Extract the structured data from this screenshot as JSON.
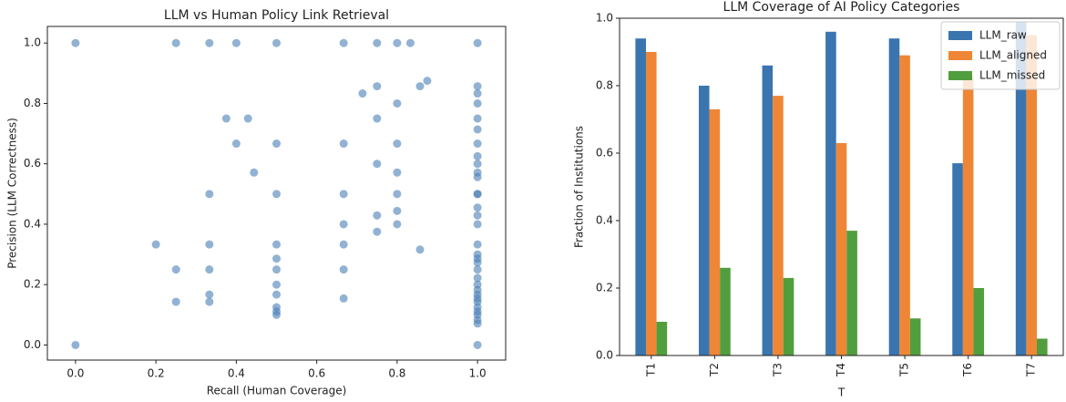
{
  "chart_data": [
    {
      "type": "scatter",
      "title": "LLM vs Human Policy Link Retrieval",
      "x_label": "Recall (Human Coverage)",
      "y_label": "Precision (LLM Correctness)",
      "color": "#4a7fb5",
      "grid": false,
      "xlim": [
        -0.07,
        1.07
      ],
      "ylim": [
        -0.05,
        1.055
      ],
      "xticks": [
        {
          "value": 0,
          "label": "0.0"
        },
        {
          "value": 0.2,
          "label": "0.2"
        },
        {
          "value": 0.4,
          "label": "0.4"
        },
        {
          "value": 0.6,
          "label": "0.6"
        },
        {
          "value": 0.8,
          "label": "0.8"
        },
        {
          "value": 1,
          "label": "1.0"
        }
      ],
      "yticks": [
        {
          "value": 0,
          "label": "0.0"
        },
        {
          "value": 0.2,
          "label": "0.2"
        },
        {
          "value": 0.4,
          "label": "0.4"
        },
        {
          "value": 0.6,
          "label": "0.6"
        },
        {
          "value": 0.8,
          "label": "0.8"
        },
        {
          "value": 1,
          "label": "1.0"
        }
      ],
      "x": [
        0,
        0,
        0.25,
        0.333,
        0.4,
        0.5,
        0.667,
        0.75,
        0.8,
        0.833,
        1,
        0.714,
        0.75,
        0.857,
        0.875,
        0.75,
        0.8,
        0.375,
        0.429,
        0.4,
        0.5,
        0.667,
        0.8,
        0.444,
        0.75,
        0.8,
        0.333,
        0.5,
        0.667,
        0.8,
        0.75,
        0.8,
        0.75,
        0.667,
        0.8,
        0.2,
        0.333,
        0.5,
        0.667,
        0.857,
        0.25,
        0.333,
        0.5,
        0.5,
        0.667,
        0.5,
        0.5,
        0.333,
        0.25,
        0.333,
        0.667,
        0.5,
        0.5,
        0.5,
        1,
        1,
        1,
        1,
        1,
        1,
        1,
        1,
        1,
        1,
        1,
        1,
        1,
        1,
        1,
        1,
        1,
        1,
        1,
        1,
        1,
        1,
        1,
        1,
        1,
        1,
        1,
        1,
        1,
        1,
        1,
        1
      ],
      "values": [
        1,
        0,
        1,
        1,
        1,
        1,
        1,
        1,
        1,
        1,
        1,
        0.833,
        0.857,
        0.857,
        0.875,
        0.75,
        0.8,
        0.75,
        0.75,
        0.667,
        0.667,
        0.667,
        0.667,
        0.571,
        0.6,
        0.571,
        0.5,
        0.5,
        0.5,
        0.5,
        0.429,
        0.444,
        0.375,
        0.4,
        0.4,
        0.333,
        0.333,
        0.333,
        0.333,
        0.316,
        0.25,
        0.25,
        0.286,
        0.25,
        0.25,
        0.2,
        0.167,
        0.167,
        0.143,
        0.143,
        0.154,
        0.125,
        0.111,
        0.1,
        0.857,
        0.833,
        0.8,
        0.75,
        0.714,
        0.667,
        0.625,
        0.6,
        0.571,
        0.556,
        0.5,
        0.455,
        0.429,
        0.4,
        0.333,
        0.3,
        0.286,
        0.273,
        0.25,
        0.222,
        0.2,
        0.182,
        0.167,
        0.154,
        0.143,
        0.125,
        0.111,
        0.1,
        0.083,
        0.071,
        0,
        0.5
      ]
    },
    {
      "type": "bar",
      "title": "LLM Coverage of AI Policy Categories",
      "x_label": "T",
      "y_label": "Fraction of Institutions",
      "grid": false,
      "legend": "upper-right",
      "categories": [
        "T1",
        "T2",
        "T3",
        "T4",
        "T5",
        "T6",
        "T7"
      ],
      "ylim": [
        0,
        1.0
      ],
      "yticks": [
        {
          "value": 0,
          "label": "0.0"
        },
        {
          "value": 0.2,
          "label": "0.2"
        },
        {
          "value": 0.4,
          "label": "0.4"
        },
        {
          "value": 0.6,
          "label": "0.6"
        },
        {
          "value": 0.8,
          "label": "0.8"
        },
        {
          "value": 1,
          "label": "1.0"
        }
      ],
      "series": [
        {
          "name": "LLM_raw",
          "color": "#3a75b0",
          "values": [
            0.94,
            0.8,
            0.86,
            0.96,
            0.94,
            0.57,
            0.99
          ]
        },
        {
          "name": "LLM_aligned",
          "color": "#ef8636",
          "values": [
            0.9,
            0.73,
            0.77,
            0.63,
            0.89,
            0.83,
            0.95
          ]
        },
        {
          "name": "LLM_missed",
          "color": "#519e3e",
          "values": [
            0.1,
            0.26,
            0.23,
            0.37,
            0.11,
            0.2,
            0.05
          ]
        }
      ]
    }
  ]
}
